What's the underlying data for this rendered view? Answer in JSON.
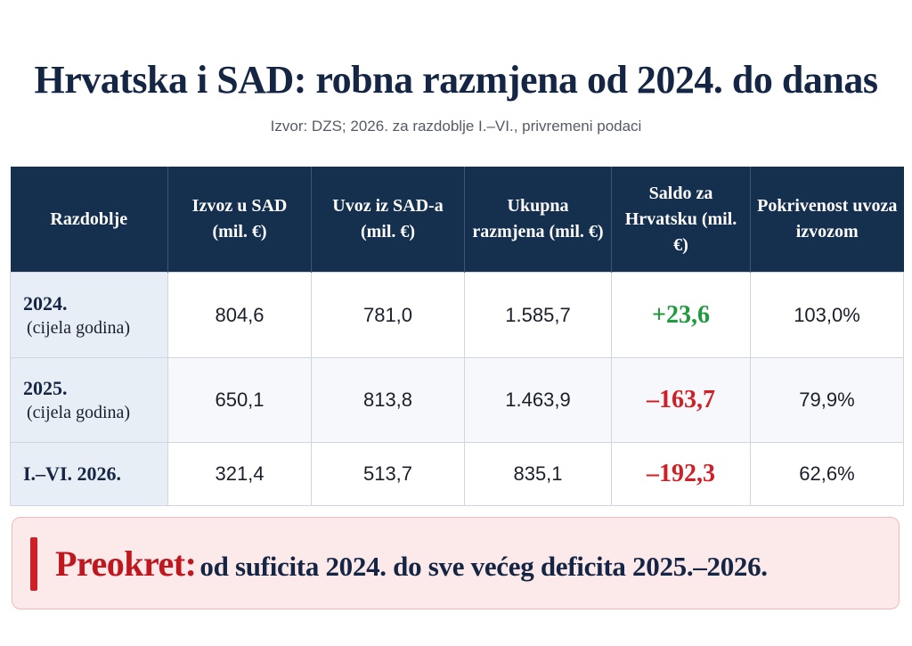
{
  "title": "Hrvatska i SAD: robna razmjena od 2024. do danas",
  "subtitle": "Izvor: DZS; 2026. za razdoblje I.–VI., privremeni podaci",
  "table": {
    "headers": [
      "Razdoblje",
      "Izvoz u SAD (mil. €)",
      "Uvoz iz SAD-a (mil. €)",
      "Ukupna razmjena (mil. €)",
      "Saldo za Hrvatsku (mil. €)",
      "Pokrivenost uvoza izvozom"
    ],
    "rows": [
      {
        "period": "2024.",
        "period_note": "(cijela godina)",
        "export": "804,6",
        "import": "781,0",
        "total": "1.585,7",
        "balance": "+23,6",
        "balance_sign": "positive",
        "coverage": "103,0%"
      },
      {
        "period": "2025.",
        "period_note": "(cijela godina)",
        "export": "650,1",
        "import": "813,8",
        "total": "1.463,9",
        "balance": "–163,7",
        "balance_sign": "negative",
        "coverage": "79,9%"
      },
      {
        "period": "I.–VI. 2026.",
        "period_note": "",
        "export": "321,4",
        "import": "513,7",
        "total": "835,1",
        "balance": "–192,3",
        "balance_sign": "negative",
        "coverage": "62,6%"
      }
    ]
  },
  "callout": {
    "key": "Preokret:",
    "text": "od suficita 2024. do sve većeg deficita 2025.–2026."
  },
  "colors": {
    "header_bg": "#152f4f",
    "positive": "#1f9a3c",
    "negative": "#d11f26",
    "callout_bg": "#fce9ea"
  }
}
